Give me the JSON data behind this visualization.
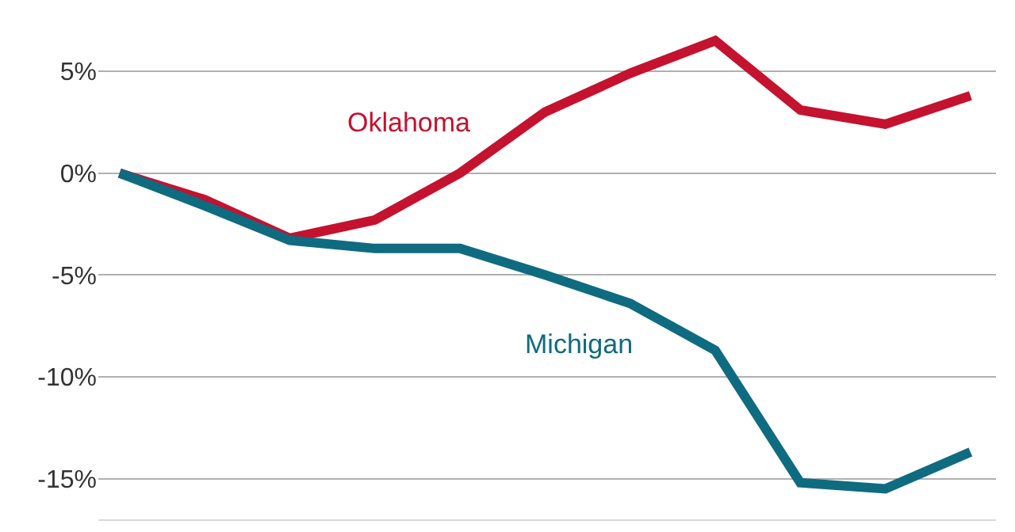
{
  "chart_data": {
    "type": "line",
    "categories": [
      null,
      null,
      null,
      null,
      null,
      null,
      null,
      null,
      null,
      null,
      null
    ],
    "series": [
      {
        "name": "Oklahoma",
        "color": "#c4122f",
        "values": [
          0,
          -1.3,
          -3.2,
          -2.3,
          0,
          3.0,
          4.9,
          6.5,
          3.1,
          2.4,
          3.8
        ]
      },
      {
        "name": "Michigan",
        "color": "#0f6b80",
        "values": [
          0,
          -1.6,
          -3.3,
          -3.7,
          -3.7,
          -5.0,
          -6.4,
          -8.7,
          -15.2,
          -15.5,
          -13.7
        ]
      }
    ],
    "ylim": [
      -17,
      8.5
    ],
    "yticks": [
      {
        "value": 5,
        "label": "5%"
      },
      {
        "value": 0,
        "label": "0%"
      },
      {
        "value": -5,
        "label": "-5%"
      },
      {
        "value": -10,
        "label": "-10%"
      },
      {
        "value": -15,
        "label": "-15%"
      }
    ],
    "grid": "y",
    "legend": false,
    "marker": "none",
    "line_style": "solid",
    "tick_labels": "y"
  }
}
